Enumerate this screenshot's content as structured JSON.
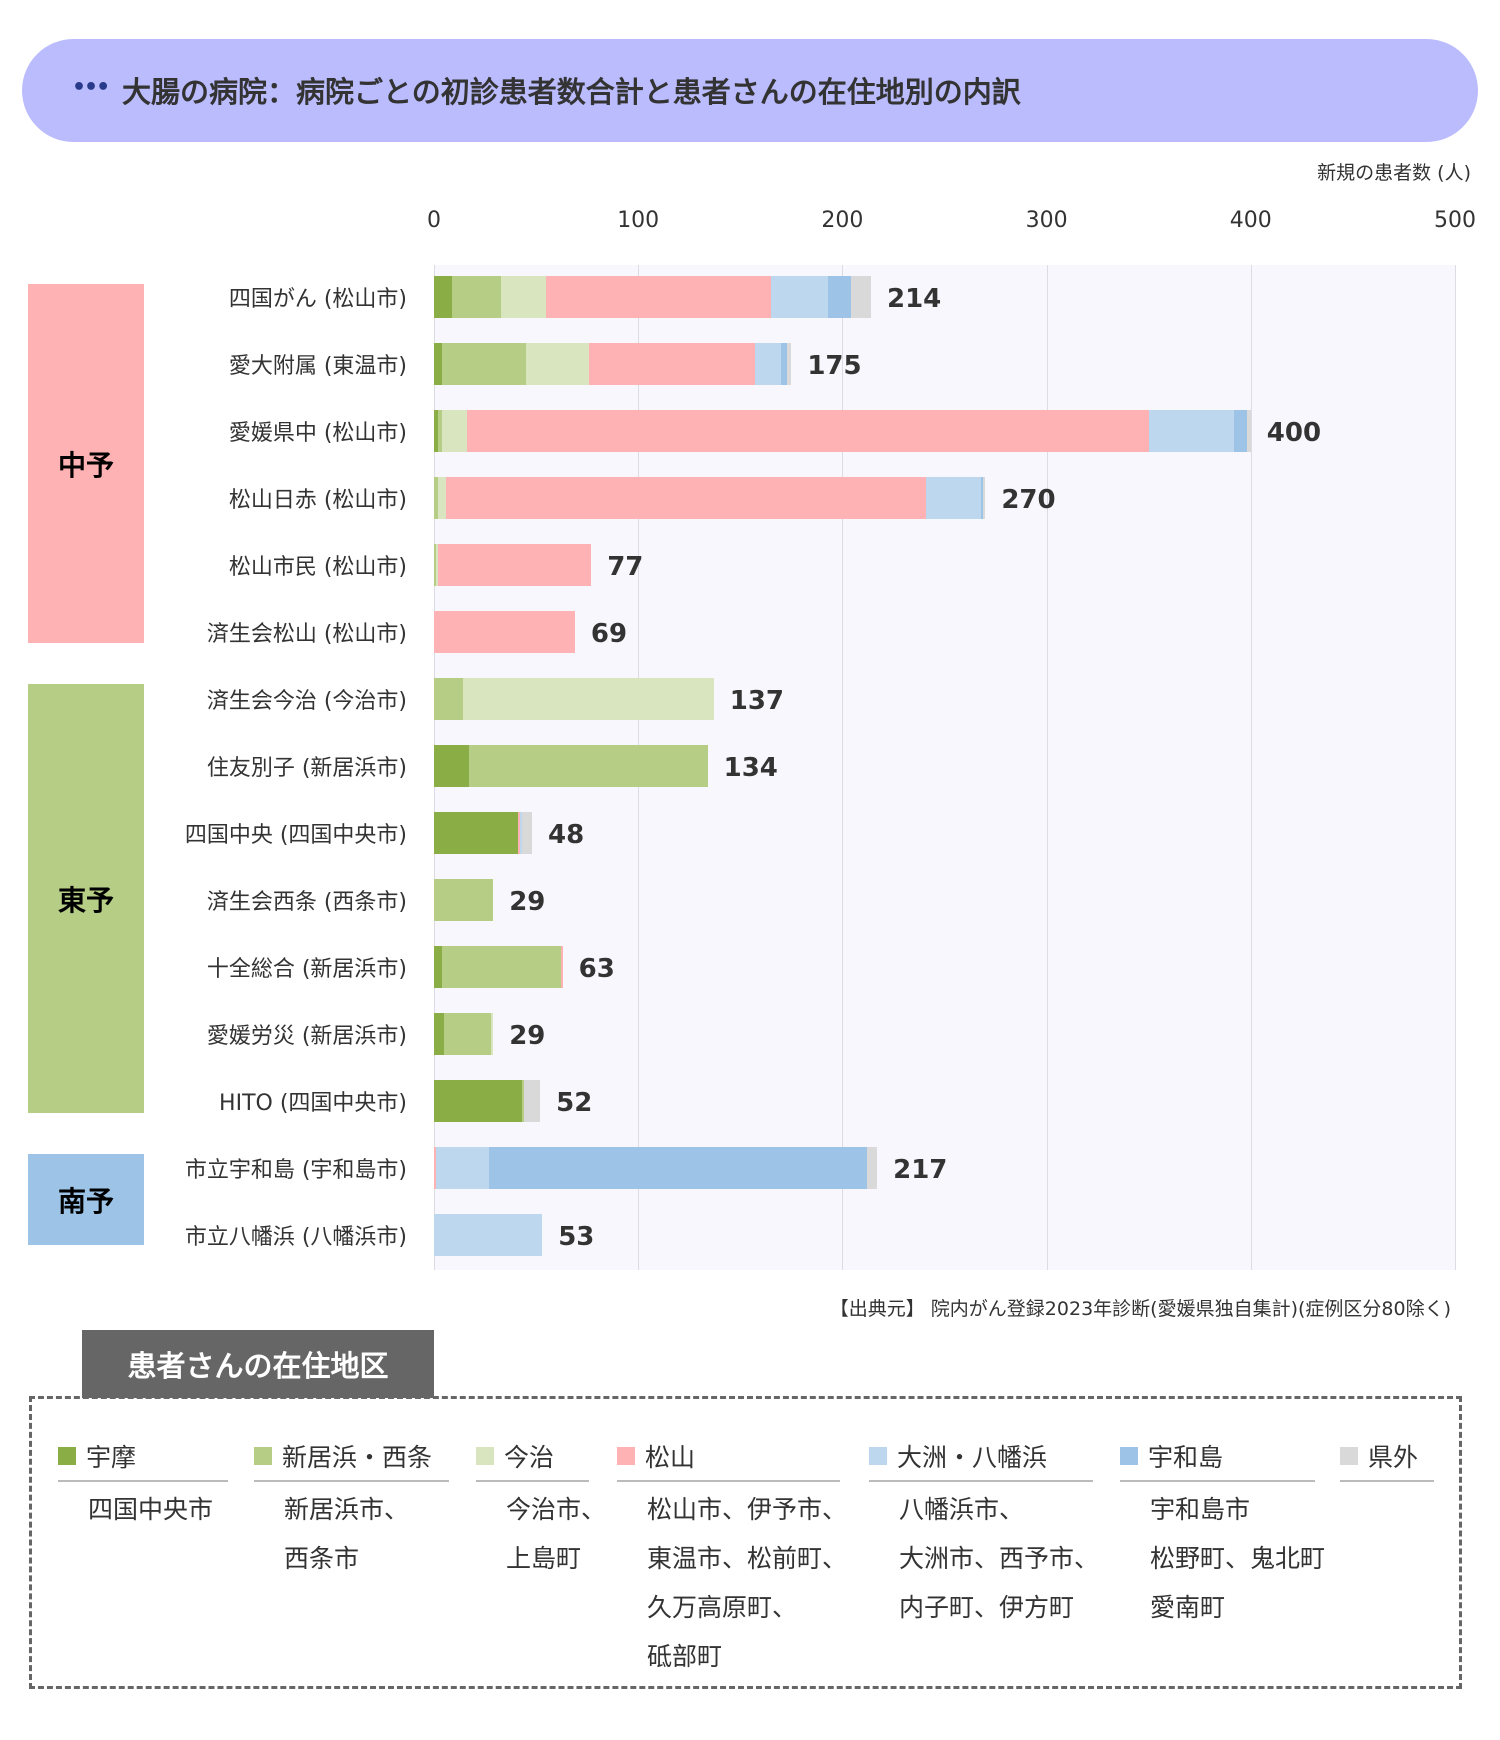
{
  "header": {
    "icon": "ellipsis-icon",
    "dots": "•••",
    "title": "大腸の病院：病院ごとの初診患者数合計と患者さんの在住地別の内訳"
  },
  "chart_data": {
    "type": "bar",
    "orientation": "horizontal",
    "stacked": true,
    "unit_label": "新規の患者数 (人)",
    "xlim": [
      0,
      500
    ],
    "x_ticks": [
      "0",
      "100",
      "200",
      "300",
      "400",
      "500"
    ],
    "grid": true,
    "categories": [
      "四国がん (松山市)",
      "愛大附属 (東温市)",
      "愛媛県中 (松山市)",
      "松山日赤 (松山市)",
      "松山市民 (松山市)",
      "済生会松山 (松山市)",
      "済生会今治 (今治市)",
      "住友別子 (新居浜市)",
      "四国中央 (四国中央市)",
      "済生会西条 (西条市)",
      "十全総合 (新居浜市)",
      "愛媛労災 (新居浜市)",
      "HITO (四国中央市)",
      "市立宇和島 (宇和島市)",
      "市立八幡浜 (八幡浜市)"
    ],
    "totals": [
      214,
      175,
      400,
      270,
      77,
      69,
      137,
      134,
      48,
      29,
      63,
      29,
      52,
      217,
      53
    ],
    "series": [
      {
        "name": "宇摩",
        "color": "#8aad46",
        "values": [
          9,
          4,
          2,
          0,
          0,
          0,
          0,
          17,
          41,
          0,
          4,
          5,
          43,
          0,
          0
        ]
      },
      {
        "name": "新居浜・西条",
        "color": "#b5cd84",
        "values": [
          24,
          41,
          2,
          2,
          1,
          0,
          14,
          117,
          0,
          29,
          58,
          23,
          1,
          0,
          0
        ]
      },
      {
        "name": "今治",
        "color": "#d8e5bf",
        "values": [
          22,
          31,
          12,
          4,
          1,
          0,
          123,
          0,
          0,
          0,
          0,
          1,
          0,
          0,
          0
        ]
      },
      {
        "name": "松山",
        "color": "#ffb2b3",
        "values": [
          110,
          81,
          334,
          235,
          75,
          69,
          0,
          0,
          1,
          0,
          1,
          0,
          0,
          1,
          0
        ]
      },
      {
        "name": "大洲・八幡浜",
        "color": "#bdd7ee",
        "values": [
          28,
          13,
          42,
          27,
          0,
          0,
          0,
          0,
          1,
          0,
          0,
          0,
          0,
          26,
          53
        ]
      },
      {
        "name": "宇和島",
        "color": "#9dc3e6",
        "values": [
          11,
          3,
          6,
          1,
          0,
          0,
          0,
          0,
          0,
          0,
          0,
          0,
          0,
          185,
          0
        ]
      },
      {
        "name": "県外",
        "color": "#d9d9d9",
        "values": [
          10,
          2,
          2,
          1,
          0,
          0,
          0,
          0,
          5,
          0,
          0,
          0,
          8,
          5,
          0
        ]
      }
    ],
    "regions": [
      {
        "label": "中予",
        "color": "#ffb2b3"
      },
      {
        "label": "東予",
        "color": "#b5cd84"
      },
      {
        "label": "南予",
        "color": "#9dc3e6"
      }
    ],
    "source": "【出典元】 院内がん登録2023年診断(愛媛県独自集計)(症例区分80除く)"
  },
  "legend": {
    "title": "患者さんの在住地区",
    "items": [
      {
        "label": "宇摩",
        "color": "#8aad46",
        "lines": [
          "四国中央市"
        ]
      },
      {
        "label": "新居浜・西条",
        "color": "#b5cd84",
        "lines": [
          "新居浜市、",
          "西条市"
        ]
      },
      {
        "label": "今治",
        "color": "#d8e5bf",
        "lines": [
          "今治市、",
          "上島町"
        ]
      },
      {
        "label": "松山",
        "color": "#ffb2b3",
        "lines": [
          "松山市、伊予市、",
          "東温市、松前町、",
          "久万高原町、",
          "砥部町"
        ]
      },
      {
        "label": "大洲・八幡浜",
        "color": "#bdd7ee",
        "lines": [
          "八幡浜市、",
          "大洲市、西予市、",
          "内子町、伊方町"
        ]
      },
      {
        "label": "宇和島",
        "color": "#9dc3e6",
        "lines": [
          "宇和島市",
          "松野町、鬼北町",
          "愛南町"
        ]
      },
      {
        "label": "県外",
        "color": "#d9d9d9",
        "lines": []
      }
    ]
  }
}
